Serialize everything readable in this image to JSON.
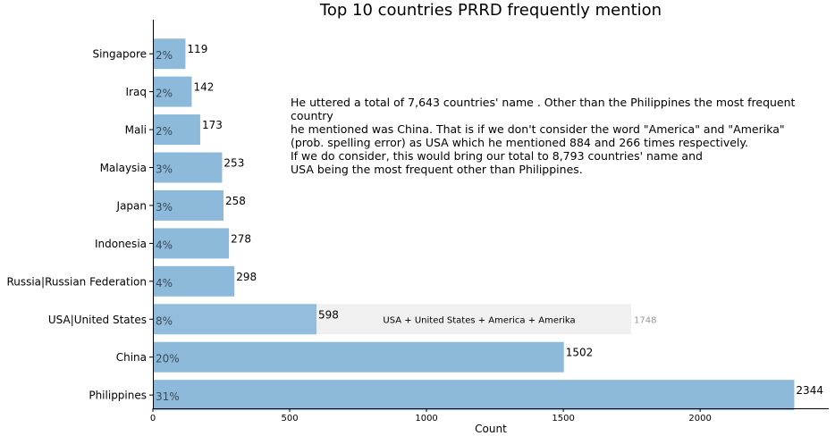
{
  "chart_data": {
    "type": "bar",
    "orientation": "horizontal",
    "title": "Top 10 countries PRRD frequently mention",
    "xlabel": "Count",
    "ylabel": "",
    "xlim": [
      0,
      2470
    ],
    "xticks": [
      0,
      500,
      1000,
      1500,
      2000
    ],
    "categories": [
      "Singapore",
      "Iraq",
      "Mali",
      "Malaysia",
      "Japan",
      "Indonesia",
      "Russia|Russian Federation",
      "USA|United States",
      "China",
      "Philippines"
    ],
    "values": [
      119,
      142,
      173,
      253,
      258,
      278,
      298,
      598,
      1502,
      2344
    ],
    "percent_labels": [
      "2%",
      "2%",
      "2%",
      "3%",
      "3%",
      "4%",
      "4%",
      "8%",
      "20%",
      "31%"
    ],
    "bar_color": "#8db9da",
    "background_bar": {
      "category": "USA|United States",
      "value": 1748,
      "label": "USA + United States + America + Amerika",
      "value_label": "1748",
      "color": "#f0f0f0"
    },
    "annotation": "He uttered a total of 7,643 countries' name . Other than the Philippines the most frequent country\nhe mentioned was China. That is if we don't consider the word \"America\" and \"Amerika\"\n(prob. spelling error) as USA which he mentioned 884 and 266 times respectively.\nIf we do consider, this would bring our total to 8,793 countries' name and\nUSA being the most frequent other than Philippines.",
    "grid": false
  }
}
